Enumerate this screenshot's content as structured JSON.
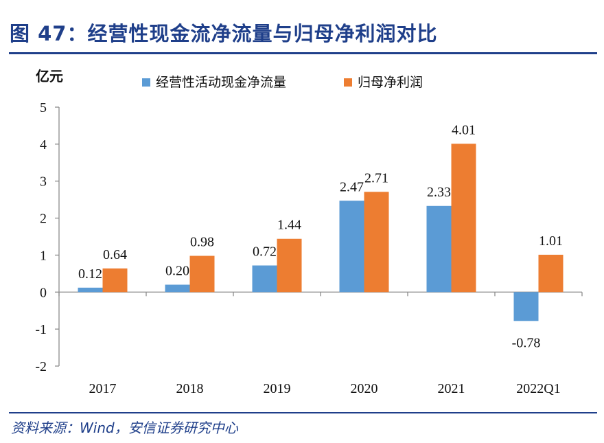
{
  "header": {
    "title": "图 47：经营性现金流净流量与归母净利润对比"
  },
  "footer": {
    "source": "资料来源：Wind，安信证券研究中心"
  },
  "colors": {
    "series1": "#5b9bd5",
    "series2": "#ed7d31",
    "brand": "#1f3f8a"
  },
  "chart_data": {
    "type": "bar",
    "title": "经营性现金流净流量与归母净利润对比",
    "ylabel": "亿元",
    "categories": [
      "2017",
      "2018",
      "2019",
      "2020",
      "2021",
      "2022Q1"
    ],
    "series": [
      {
        "name": "经营性活动现金净流量",
        "values": [
          0.12,
          0.2,
          0.72,
          2.47,
          2.33,
          -0.78
        ]
      },
      {
        "name": "归母净利润",
        "values": [
          0.64,
          0.98,
          1.44,
          2.71,
          4.01,
          1.01
        ]
      }
    ],
    "ylim": [
      -2,
      5
    ],
    "yticks": [
      -2,
      -1,
      0,
      1,
      2,
      3,
      4,
      5
    ],
    "legend": "top",
    "grid": false
  }
}
